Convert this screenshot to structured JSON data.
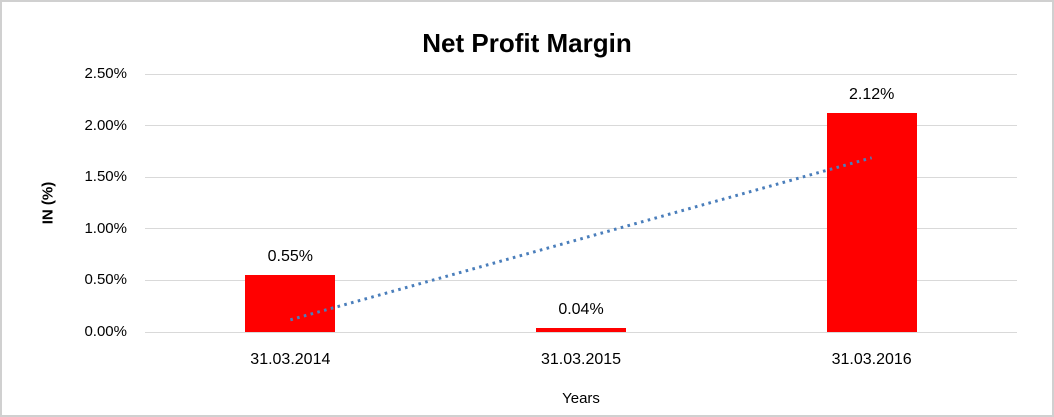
{
  "window": {
    "background": "#ffffff",
    "border_color": "#d0d0d0"
  },
  "chart_data": {
    "type": "bar",
    "title": "Net Profit Margin",
    "categories": [
      "31.03.2014",
      "31.03.2015",
      "31.03.2016"
    ],
    "values": [
      0.55,
      0.04,
      2.12
    ],
    "data_labels": [
      "0.55%",
      "0.04%",
      "2.12%"
    ],
    "xlabel": "Years",
    "ylabel": "IN (%)",
    "ylim": [
      0,
      2.5
    ],
    "ytick_step": 0.5,
    "ytick_labels": [
      "0.00%",
      "0.50%",
      "1.00%",
      "1.50%",
      "2.00%",
      "2.50%"
    ],
    "grid": true,
    "legend": false,
    "bar_color": "#ff0000",
    "gridline_color": "#d9d9d9",
    "text_color": "#000000",
    "trendline": {
      "type": "linear",
      "style": "dotted",
      "color": "#4a7ebb",
      "start_value": 0.118,
      "end_value": 1.688
    }
  }
}
